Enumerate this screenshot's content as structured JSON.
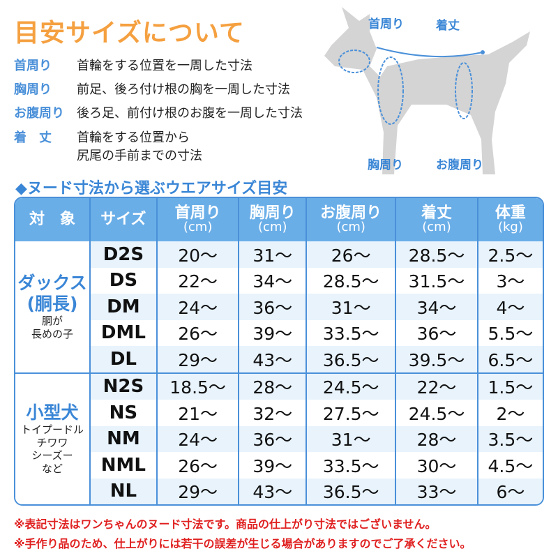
{
  "title": "目安サイズについて",
  "definitions": [
    {
      "term": "首周り",
      "desc": "首輪をする位置を一周した寸法"
    },
    {
      "term": "胸周り",
      "desc": "前足、後ろ付け根の胸を一周した寸法"
    },
    {
      "term": "お腹周り",
      "desc": "後ろ足、前付け根のお腹を一周した寸法"
    },
    {
      "term": "着　丈",
      "desc": "首輪をする位置から",
      "desc2": "尻尾の手前までの寸法"
    }
  ],
  "dog_labels": {
    "neck": "首周り",
    "length": "着丈",
    "chest": "胸周り",
    "belly": "お腹周り"
  },
  "subtitle": "◆ヌード寸法から選ぶウエアサイズ目安",
  "table": {
    "headers": [
      {
        "label": "対　象"
      },
      {
        "label": "サイズ"
      },
      {
        "label": "首周り",
        "unit": "(cm)"
      },
      {
        "label": "胸周り",
        "unit": "(cm)"
      },
      {
        "label": "お腹周り",
        "unit": "(cm)"
      },
      {
        "label": "着丈",
        "unit": "(cm)"
      },
      {
        "label": "体重",
        "unit": "(kg)"
      }
    ],
    "groups": [
      {
        "name": "ダックス",
        "name2": "(胴長)",
        "desc": [
          "胴が",
          "長めの子"
        ],
        "rows": [
          [
            "D2S",
            "20～",
            "31～",
            "26～",
            "28.5～",
            "2.5～"
          ],
          [
            "DS",
            "22～",
            "34～",
            "28.5～",
            "31.5～",
            "3～"
          ],
          [
            "DM",
            "24～",
            "36～",
            "31～",
            "34～",
            "4～"
          ],
          [
            "DML",
            "26～",
            "39～",
            "33.5～",
            "36～",
            "5.5～"
          ],
          [
            "DL",
            "29～",
            "43～",
            "36.5～",
            "39.5～",
            "6.5～"
          ]
        ]
      },
      {
        "name": "小型犬",
        "name2": "",
        "desc": [
          "トイプードル",
          "チワワ",
          "シーズー",
          "など"
        ],
        "rows": [
          [
            "N2S",
            "18.5～",
            "28～",
            "24.5～",
            "22～",
            "1.5～"
          ],
          [
            "NS",
            "21～",
            "32～",
            "27.5～",
            "24.5～",
            "2～"
          ],
          [
            "NM",
            "24～",
            "36～",
            "31～",
            "28～",
            "3.5～"
          ],
          [
            "NML",
            "26～",
            "39～",
            "33.5～",
            "30～",
            "4.5～"
          ],
          [
            "NL",
            "29～",
            "43～",
            "36.5～",
            "33～",
            "6～"
          ]
        ]
      }
    ]
  },
  "notes": [
    "※表記寸法はワンちゃんのヌード寸法です。商品の仕上がり寸法ではございません。",
    "※手作り品のため、仕上がりには若干の誤差が生じる場合がありますのでご了承ください。"
  ],
  "colors": {
    "accent": "#4a90d9",
    "title": "#f5a040",
    "header": "#6aaee8",
    "note": "#e02020",
    "dog": "#d4d4d4"
  }
}
